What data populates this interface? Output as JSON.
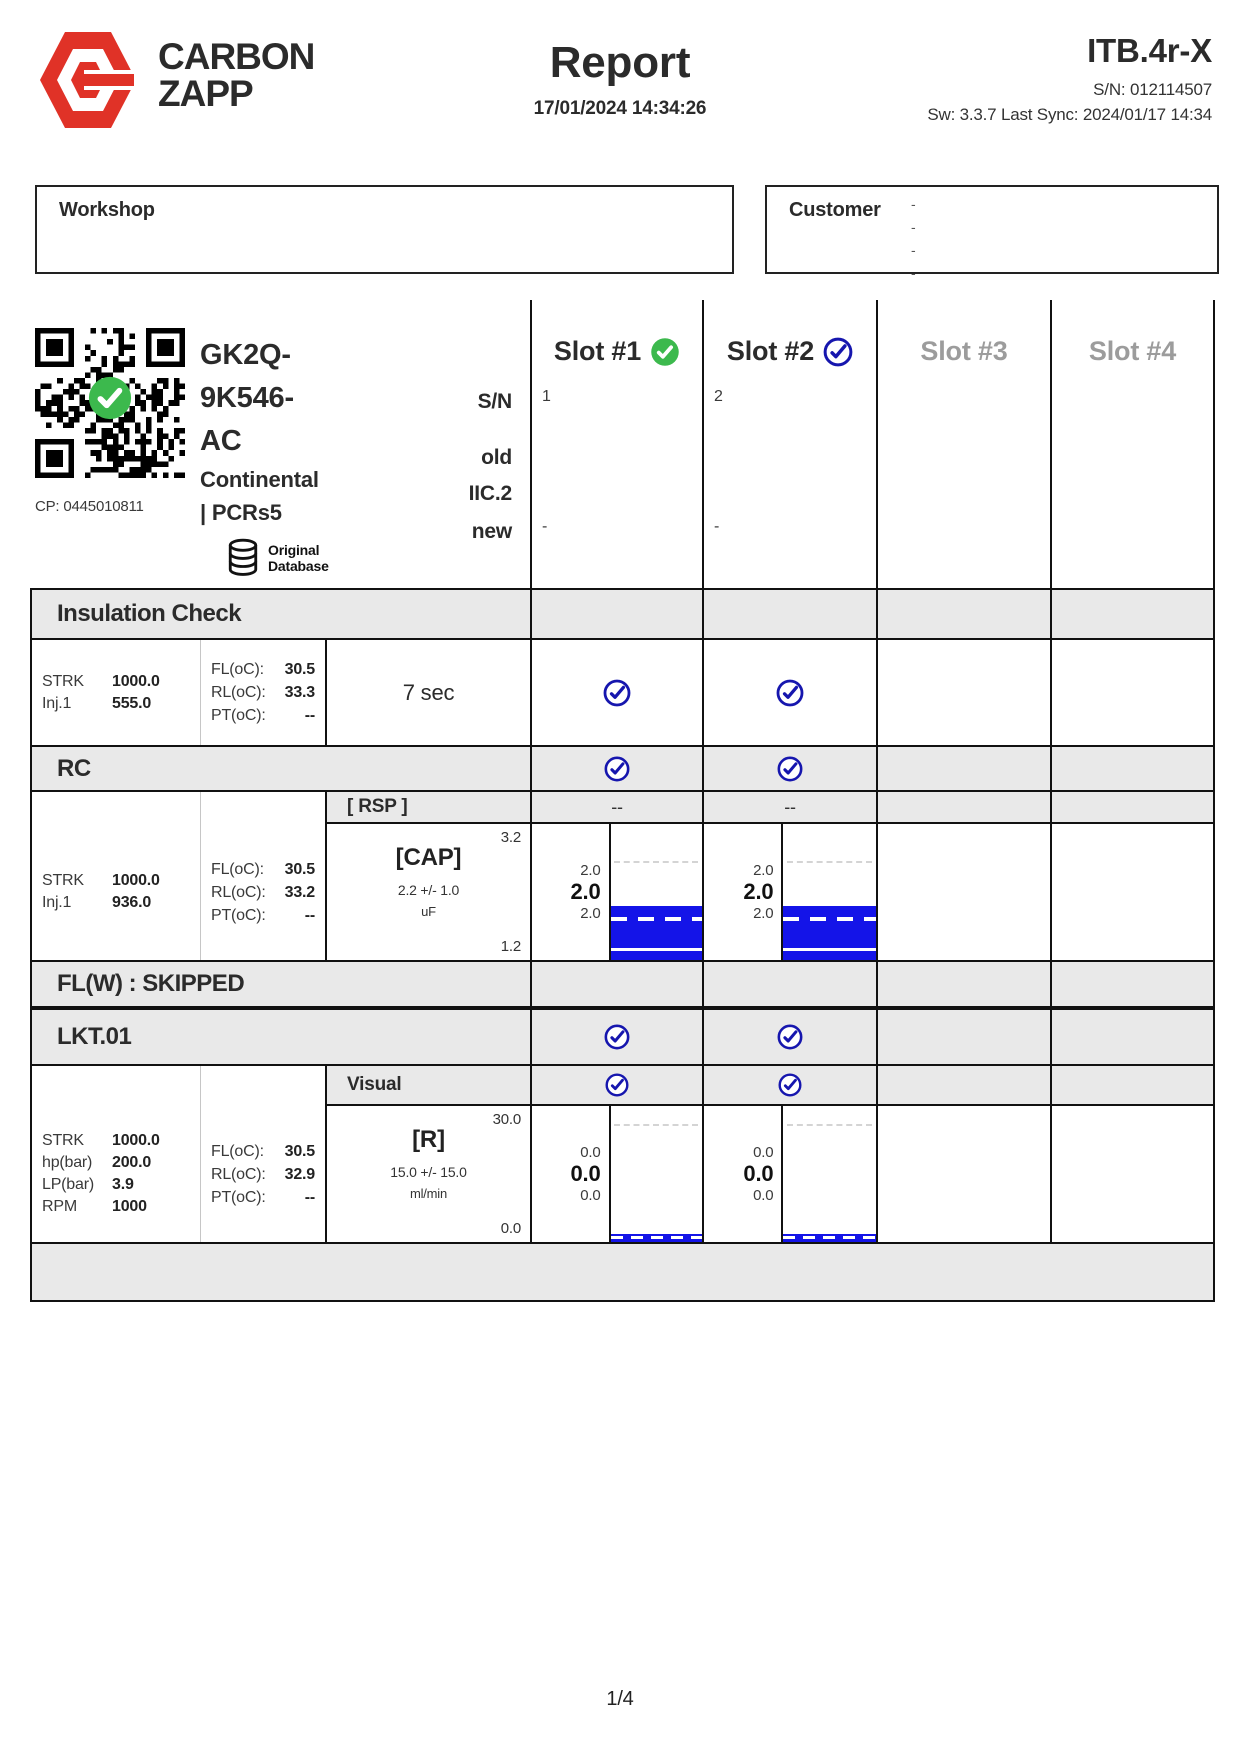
{
  "header": {
    "brand_line1": "CARBON",
    "brand_line2": "ZAPP",
    "title": "Report",
    "datetime": "17/01/2024 14:34:26",
    "device": "ITB.4r-X",
    "serial": "S/N: 012114507",
    "sync_line": "Sw: 3.3.7 Last Sync: 2024/01/17 14:34"
  },
  "boxes": {
    "workshop_label": "Workshop",
    "customer_label": "Customer",
    "customer_dashes": [
      "-",
      "-",
      "-",
      "-"
    ]
  },
  "part": {
    "qr_caption": "CP: 0445010811",
    "code_line1": "GK2Q-",
    "code_line2": "9K546-",
    "code_line3": "AC",
    "maker": "Continental",
    "series": "| PCRs5",
    "db_line1": "Original",
    "db_line2": "Database",
    "label_sn": "S/N",
    "label_old": "old",
    "label_iic": "IIC.2",
    "label_new": "new"
  },
  "slots": [
    {
      "label": "Slot #1",
      "sn": "1",
      "new_value": "-"
    },
    {
      "label": "Slot #2",
      "sn": "2",
      "new_value": "-"
    },
    {
      "label": "Slot #3"
    },
    {
      "label": "Slot #4"
    }
  ],
  "insulation": {
    "title": "Insulation Check",
    "params": [
      {
        "k": "STRK",
        "v": "1000.0"
      },
      {
        "k": "Inj.1",
        "v": "555.0"
      }
    ],
    "temps": [
      {
        "k": "FL(oC):",
        "v": "30.5"
      },
      {
        "k": "RL(oC):",
        "v": "33.3"
      },
      {
        "k": "PT(oC):",
        "v": "--"
      }
    ],
    "duration": "7 sec"
  },
  "rc": {
    "title": "RC",
    "rsp_label": "[ RSP ]",
    "rsp_slot1": "--",
    "rsp_slot2": "--",
    "cap": {
      "params": [
        {
          "k": "STRK",
          "v": "1000.0"
        },
        {
          "k": "Inj.1",
          "v": "936.0"
        }
      ],
      "temps": [
        {
          "k": "FL(oC):",
          "v": "30.5"
        },
        {
          "k": "RL(oC):",
          "v": "33.2"
        },
        {
          "k": "PT(oC):",
          "v": "--"
        }
      ],
      "name": "[CAP]",
      "spec": "2.2 +/- 1.0",
      "unit": "uF",
      "scale_max": "3.2",
      "scale_min": "1.2",
      "slot1": {
        "pre": "2.0",
        "main": "2.0",
        "post": "2.0",
        "graph": {
          "value": 2.0,
          "min": 1.2,
          "max": 3.2
        }
      },
      "slot2": {
        "pre": "2.0",
        "main": "2.0",
        "post": "2.0",
        "graph": {
          "value": 2.0,
          "min": 1.2,
          "max": 3.2
        }
      }
    }
  },
  "flw": {
    "title": "FL(W) : SKIPPED"
  },
  "lkt": {
    "title": "LKT.01",
    "visual_label": "Visual",
    "r": {
      "params": [
        {
          "k": "STRK",
          "v": "1000.0"
        },
        {
          "k": "hp(bar)",
          "v": "200.0"
        },
        {
          "k": "LP(bar)",
          "v": "3.9"
        },
        {
          "k": "RPM",
          "v": "1000"
        }
      ],
      "temps": [
        {
          "k": "FL(oC):",
          "v": "30.5"
        },
        {
          "k": "RL(oC):",
          "v": "32.9"
        },
        {
          "k": "PT(oC):",
          "v": "--"
        }
      ],
      "name": "[R]",
      "spec": "15.0 +/- 15.0",
      "unit": "ml/min",
      "scale_max": "30.0",
      "scale_min": "0.0",
      "slot1": {
        "pre": "0.0",
        "main": "0.0",
        "post": "0.0",
        "graph": {
          "value": 0.0,
          "min": 0.0,
          "max": 30.0
        }
      },
      "slot2": {
        "pre": "0.0",
        "main": "0.0",
        "post": "0.0",
        "graph": {
          "value": 0.0,
          "min": 0.0,
          "max": 30.0
        }
      }
    }
  },
  "footer": {
    "page": "1/4"
  },
  "colors": {
    "accent_red": "#e03227",
    "bar_blue": "#1414e8",
    "check_green": "#3cb94d",
    "check_blue": "#1616ae"
  }
}
